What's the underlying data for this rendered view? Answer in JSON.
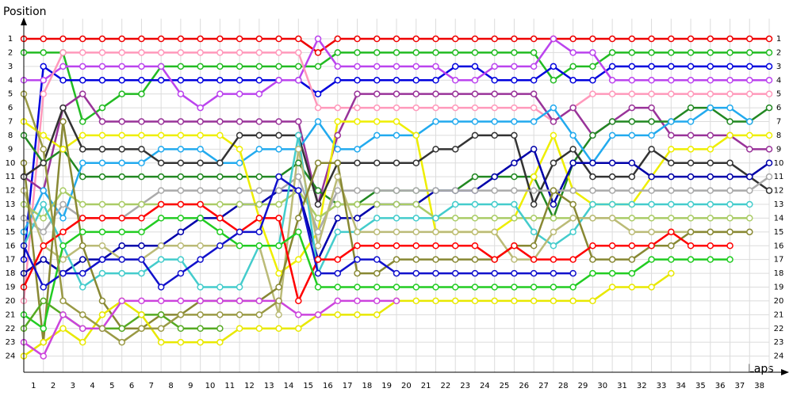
{
  "chart_data": {
    "type": "line",
    "y_label": "Position",
    "x_label": "Laps",
    "x": [
      0,
      1,
      2,
      3,
      4,
      5,
      6,
      7,
      8,
      9,
      10,
      11,
      12,
      13,
      14,
      15,
      16,
      17,
      18,
      19,
      20,
      21,
      22,
      23,
      24,
      25,
      26,
      27,
      28,
      29,
      30,
      31,
      32,
      33,
      34,
      35,
      36,
      37,
      38
    ],
    "xlim": [
      0,
      38
    ],
    "xticks": [
      1,
      2,
      3,
      4,
      5,
      6,
      7,
      8,
      9,
      10,
      11,
      12,
      13,
      14,
      15,
      16,
      17,
      18,
      19,
      20,
      21,
      22,
      23,
      24,
      25,
      26,
      27,
      28,
      29,
      30,
      31,
      32,
      33,
      34,
      35,
      36,
      37,
      38
    ],
    "ylim": [
      25,
      0
    ],
    "yticks": [
      1,
      2,
      3,
      4,
      5,
      6,
      7,
      8,
      9,
      10,
      11,
      12,
      13,
      14,
      15,
      16,
      17,
      18,
      19,
      20,
      21,
      22,
      23,
      24
    ],
    "grid": true,
    "series": [
      {
        "color": "#ee0000",
        "values": [
          1,
          1,
          1,
          1,
          1,
          1,
          1,
          1,
          1,
          1,
          1,
          1,
          1,
          1,
          1,
          2,
          1,
          1,
          1,
          1,
          1,
          1,
          1,
          1,
          1,
          1,
          1,
          1,
          1,
          1,
          1,
          1,
          1,
          1,
          1,
          1,
          1,
          1,
          1
        ]
      },
      {
        "color": "#22bb22",
        "values": [
          2,
          2,
          2,
          7,
          6,
          5,
          5,
          3,
          3,
          3,
          3,
          3,
          3,
          3,
          3,
          3,
          2,
          2,
          2,
          2,
          2,
          2,
          2,
          2,
          2,
          2,
          2,
          4,
          3,
          3,
          2,
          2,
          2,
          2,
          2,
          2,
          2,
          2,
          2
        ]
      },
      {
        "color": "#0000dd",
        "values": [
          17,
          3,
          4,
          4,
          4,
          4,
          4,
          4,
          4,
          4,
          4,
          4,
          4,
          4,
          4,
          5,
          4,
          4,
          4,
          4,
          4,
          4,
          3,
          3,
          4,
          4,
          4,
          3,
          4,
          4,
          3,
          3,
          3,
          3,
          3,
          3,
          3,
          3,
          3
        ]
      },
      {
        "color": "#bb44ee",
        "values": [
          4,
          4,
          3,
          3,
          3,
          3,
          3,
          3,
          5,
          6,
          5,
          5,
          5,
          4,
          4,
          1,
          3,
          3,
          3,
          3,
          3,
          3,
          4,
          4,
          3,
          3,
          3,
          1,
          2,
          2,
          4,
          4,
          4,
          4,
          4,
          4,
          4,
          4,
          4
        ]
      },
      {
        "color": "#ff99bb",
        "values": [
          20,
          5,
          2,
          2,
          2,
          2,
          2,
          2,
          2,
          2,
          2,
          2,
          2,
          2,
          2,
          6,
          6,
          6,
          6,
          6,
          6,
          6,
          6,
          6,
          6,
          6,
          6,
          7,
          6,
          5,
          5,
          5,
          5,
          5,
          5,
          5,
          5,
          5,
          5
        ]
      },
      {
        "color": "#993399",
        "values": [
          11,
          12,
          6,
          5,
          7,
          7,
          7,
          7,
          7,
          7,
          7,
          7,
          7,
          7,
          7,
          13,
          8,
          5,
          5,
          5,
          5,
          5,
          5,
          5,
          5,
          5,
          5,
          7,
          6,
          8,
          7,
          6,
          6,
          8,
          8,
          8,
          8,
          9,
          9
        ]
      },
      {
        "color": "#228822",
        "values": [
          8,
          10,
          9,
          11,
          11,
          11,
          11,
          11,
          11,
          11,
          11,
          11,
          11,
          11,
          10,
          12,
          13,
          13,
          12,
          12,
          12,
          12,
          12,
          11,
          11,
          11,
          11,
          14,
          10,
          8,
          7,
          7,
          7,
          7,
          6,
          6,
          7,
          7,
          6
        ]
      },
      {
        "color": "#22aaee",
        "values": [
          15,
          12,
          14,
          10,
          10,
          10,
          10,
          9,
          9,
          9,
          10,
          10,
          9,
          9,
          9,
          7,
          9,
          9,
          8,
          8,
          8,
          7,
          7,
          7,
          7,
          7,
          7,
          6,
          8,
          10,
          8,
          8,
          8,
          7,
          7,
          6,
          6,
          7,
          null
        ]
      },
      {
        "color": "#eeee00",
        "values": [
          7,
          8,
          9,
          8,
          8,
          8,
          8,
          8,
          8,
          8,
          8,
          9,
          14,
          18,
          17,
          15,
          7,
          7,
          7,
          7,
          8,
          15,
          15,
          15,
          15,
          14,
          11,
          8,
          12,
          13,
          13,
          13,
          11,
          9,
          9,
          9,
          8,
          8,
          8
        ]
      },
      {
        "color": "#333333",
        "values": [
          11,
          10,
          6,
          9,
          9,
          9,
          9,
          10,
          10,
          10,
          10,
          8,
          8,
          8,
          8,
          13,
          10,
          10,
          10,
          10,
          10,
          9,
          9,
          8,
          8,
          8,
          13,
          10,
          9,
          11,
          11,
          11,
          9,
          10,
          10,
          10,
          10,
          11,
          12
        ]
      },
      {
        "color": "#0000aa",
        "values": [
          18,
          17,
          18,
          17,
          17,
          16,
          16,
          16,
          15,
          14,
          14,
          13,
          13,
          12,
          12,
          17,
          14,
          14,
          13,
          13,
          13,
          12,
          12,
          12,
          11,
          10,
          9,
          13,
          10,
          10,
          10,
          10,
          11,
          11,
          11,
          11,
          11,
          11,
          10
        ]
      },
      {
        "color": "#aaaaaa",
        "values": [
          14,
          15,
          13,
          14,
          14,
          14,
          13,
          12,
          12,
          12,
          12,
          12,
          12,
          12,
          11,
          15,
          12,
          12,
          12,
          12,
          12,
          12,
          12,
          12,
          12,
          12,
          12,
          12,
          12,
          12,
          12,
          12,
          12,
          12,
          12,
          12,
          12,
          12,
          11
        ]
      },
      {
        "color": "#aacc66",
        "values": [
          13,
          14,
          12,
          13,
          13,
          13,
          13,
          13,
          13,
          13,
          13,
          13,
          13,
          13,
          12,
          14,
          13,
          13,
          13,
          13,
          13,
          14,
          14,
          14,
          14,
          14,
          14,
          14,
          14,
          14,
          14,
          14,
          14,
          14,
          14,
          14,
          14,
          14,
          null
        ]
      },
      {
        "color": "#44cccc",
        "values": [
          16,
          13,
          16,
          19,
          18,
          18,
          18,
          17,
          17,
          19,
          19,
          19,
          16,
          16,
          8,
          18,
          15,
          15,
          14,
          14,
          14,
          14,
          13,
          13,
          13,
          13,
          15,
          16,
          15,
          13,
          13,
          13,
          13,
          13,
          13,
          13,
          13,
          13,
          null
        ]
      },
      {
        "color": "#bbbb77",
        "values": [
          12,
          16,
          17,
          16,
          16,
          17,
          17,
          16,
          16,
          16,
          16,
          16,
          16,
          21,
          9,
          16,
          11,
          15,
          15,
          15,
          15,
          15,
          15,
          15,
          15,
          17,
          17,
          15,
          14,
          14,
          14,
          15,
          15,
          15,
          15,
          15,
          15,
          15,
          null
        ]
      },
      {
        "color": "#888833",
        "values": [
          10,
          23,
          7,
          16,
          20,
          22,
          22,
          21,
          21,
          20,
          20,
          20,
          20,
          19,
          14,
          10,
          10,
          18,
          18,
          17,
          17,
          17,
          17,
          17,
          17,
          16,
          16,
          12,
          13,
          17,
          17,
          17,
          16,
          16,
          15,
          15,
          15,
          15,
          null
        ]
      },
      {
        "color": "#ff0000",
        "values": [
          19,
          16,
          15,
          14,
          14,
          14,
          14,
          13,
          13,
          13,
          14,
          15,
          14,
          14,
          20,
          17,
          17,
          16,
          16,
          16,
          16,
          16,
          16,
          16,
          17,
          16,
          17,
          17,
          17,
          16,
          16,
          16,
          16,
          15,
          16,
          16,
          16,
          null,
          null
        ]
      },
      {
        "color": "#22cc22",
        "values": [
          21,
          22,
          16,
          15,
          15,
          15,
          15,
          14,
          14,
          14,
          15,
          16,
          16,
          16,
          15,
          19,
          19,
          19,
          19,
          19,
          19,
          19,
          19,
          19,
          19,
          19,
          19,
          19,
          19,
          18,
          18,
          18,
          17,
          17,
          17,
          17,
          17,
          null,
          null
        ]
      },
      {
        "color": "#1111cc",
        "values": [
          16,
          19,
          18,
          18,
          17,
          17,
          17,
          19,
          18,
          17,
          16,
          15,
          15,
          11,
          12,
          18,
          18,
          17,
          17,
          18,
          18,
          18,
          18,
          18,
          18,
          18,
          18,
          18,
          18,
          null,
          null,
          null,
          null,
          null,
          null,
          null,
          null,
          null,
          null
        ]
      },
      {
        "color": "#55aa22",
        "values": [
          22,
          20,
          21,
          22,
          22,
          22,
          21,
          21,
          22,
          22,
          22,
          null,
          null,
          null,
          null,
          null,
          null,
          null,
          null,
          null,
          null,
          null,
          null,
          null,
          null,
          null,
          null,
          null,
          null,
          null,
          null,
          null,
          null,
          null,
          null,
          null,
          null,
          null,
          null
        ]
      },
      {
        "color": "#e8e800",
        "values": [
          24,
          23,
          22,
          23,
          21,
          20,
          21,
          23,
          23,
          23,
          23,
          22,
          22,
          22,
          22,
          21,
          21,
          21,
          21,
          20,
          20,
          20,
          20,
          20,
          20,
          20,
          20,
          20,
          20,
          20,
          19,
          19,
          19,
          18,
          null,
          null,
          null,
          null,
          null
        ]
      },
      {
        "color": "#cc44dd",
        "values": [
          23,
          24,
          21,
          22,
          22,
          20,
          20,
          20,
          20,
          20,
          20,
          20,
          20,
          20,
          21,
          21,
          20,
          20,
          20,
          20,
          null,
          null,
          null,
          null,
          null,
          null,
          null,
          null,
          null,
          null,
          null,
          null,
          null,
          null,
          null,
          null,
          null,
          null,
          null
        ]
      },
      {
        "color": "#999944",
        "values": [
          5,
          9,
          20,
          21,
          22,
          23,
          22,
          22,
          21,
          21,
          21,
          21,
          21,
          20,
          null,
          null,
          null,
          null,
          null,
          null,
          null,
          null,
          null,
          null,
          null,
          null,
          null,
          null,
          null,
          null,
          null,
          null,
          null,
          null,
          null,
          null,
          null,
          null,
          null
        ]
      }
    ]
  }
}
